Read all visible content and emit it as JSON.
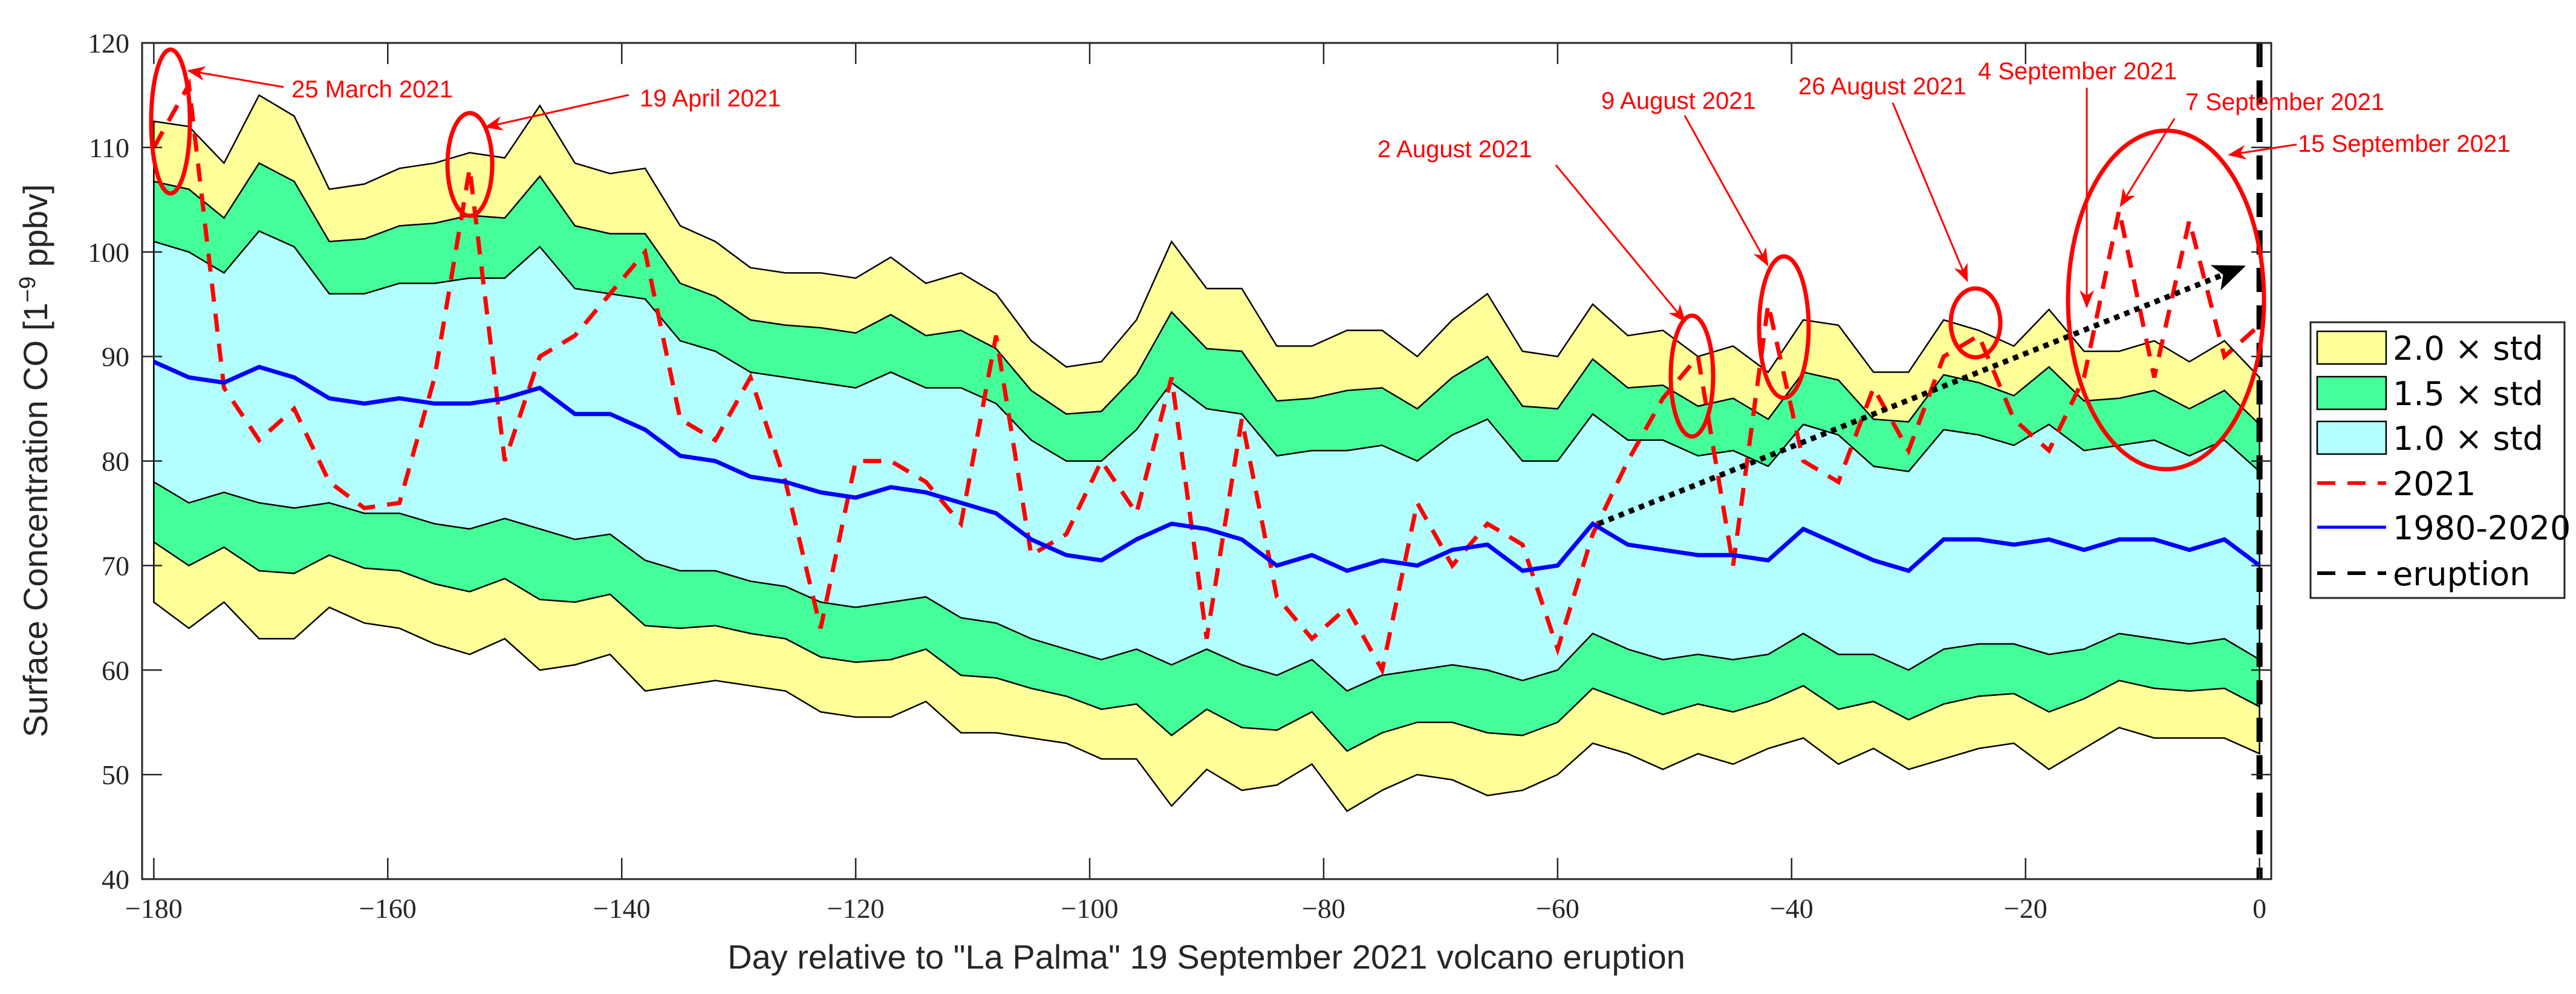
{
  "chart_data": {
    "type": "area",
    "title": "",
    "xlabel": "Day relative to \"La Palma\" 19 September 2021 volcano eruption",
    "ylabel": "Surface Concentration CO [1",
    "ylabel_sup": "−9",
    "ylabel_unit": " ppbv]",
    "xlim": [
      -181,
      1
    ],
    "ylim": [
      40,
      120
    ],
    "xticks": [
      -180,
      -160,
      -140,
      -120,
      -100,
      -80,
      -60,
      -40,
      -20,
      0
    ],
    "xtick_labels": [
      "−180",
      "−160",
      "−140",
      "−120",
      "−100",
      "−80",
      "−60",
      "−40",
      "−20",
      "0"
    ],
    "yticks": [
      40,
      50,
      60,
      70,
      80,
      90,
      100,
      110,
      120
    ],
    "ytick_labels": [
      "40",
      "50",
      "60",
      "70",
      "80",
      "90",
      "100",
      "110",
      "120"
    ],
    "grid": false,
    "legend_position": "right",
    "x": [
      -180,
      -177,
      -174,
      -171,
      -168,
      -165,
      -162,
      -159,
      -156,
      -153,
      -150,
      -147,
      -144,
      -141,
      -138,
      -135,
      -132,
      -129,
      -126,
      -123,
      -120,
      -117,
      -114,
      -111,
      -108,
      -105,
      -102,
      -99,
      -96,
      -93,
      -90,
      -87,
      -84,
      -81,
      -78,
      -75,
      -72,
      -69,
      -66,
      -63,
      -60,
      -57,
      -54,
      -51,
      -48,
      -45,
      -42,
      -39,
      -36,
      -33,
      -30,
      -27,
      -24,
      -21,
      -18,
      -15,
      -12,
      -9,
      -6,
      -3,
      0
    ],
    "series": [
      {
        "name": "1980-2020",
        "style": "solid",
        "color": "#0000ff",
        "values": [
          89.5,
          88,
          87.5,
          89,
          88,
          86,
          85.5,
          86,
          85.5,
          85.5,
          86,
          87,
          84.5,
          84.5,
          83,
          80.5,
          80,
          78.5,
          78,
          77,
          76.5,
          77.5,
          77,
          76,
          75,
          72.5,
          71,
          70.5,
          72.5,
          74,
          73.5,
          72.5,
          70,
          71,
          69.5,
          70.5,
          70,
          71.5,
          72,
          69.5,
          70,
          74,
          72,
          71.5,
          71,
          71,
          70.5,
          73.5,
          72,
          70.5,
          69.5,
          72.5,
          72.5,
          72,
          72.5,
          71.5,
          72.5,
          72.5,
          71.5,
          72.5,
          70
        ]
      },
      {
        "name": "std",
        "style": "band-width",
        "values": [
          11.5,
          12,
          10.5,
          13,
          12.5,
          10,
          10.5,
          11,
          11.5,
          12,
          11.5,
          13.5,
          12,
          11.5,
          12.5,
          11,
          10.5,
          10,
          10,
          10.5,
          10.5,
          11,
          10,
          11,
          10.5,
          9.5,
          9,
          9.5,
          10.5,
          13.5,
          11.5,
          12,
          10.5,
          10,
          11.5,
          11,
          10,
          11,
          12,
          10.5,
          10,
          10.5,
          10,
          10.5,
          9.5,
          10,
          9,
          10,
          10.5,
          9,
          9.5,
          10.5,
          10,
          9.5,
          11,
          9.5,
          9,
          9.5,
          9,
          9.5,
          9
        ]
      },
      {
        "name": "2021",
        "style": "dashed",
        "color": "#ff0000",
        "values": [
          110,
          116,
          87,
          82,
          85,
          78,
          75.5,
          76,
          88,
          108,
          80,
          90,
          92,
          96,
          100,
          84,
          82,
          88,
          78,
          64,
          80,
          80,
          78,
          74,
          92,
          71,
          73,
          80,
          75,
          88,
          63,
          84,
          67,
          63,
          66,
          60,
          76,
          70,
          74,
          72,
          62,
          73,
          80,
          86,
          90,
          70,
          95,
          80,
          78,
          87,
          81,
          90,
          92,
          84,
          81,
          88,
          104,
          88,
          103,
          90,
          93
        ]
      }
    ],
    "bands": [
      {
        "label": "2.0 × std",
        "k": 2.0,
        "color": "#ffff99"
      },
      {
        "label": "1.5 × std",
        "k": 1.5,
        "color": "#44ff99"
      },
      {
        "label": "1.0 × std",
        "k": 1.0,
        "color": "#b3ffff"
      }
    ],
    "legend": [
      {
        "label": "2.0 × std",
        "kind": "patch",
        "color": "#ffff99"
      },
      {
        "label": "1.5 × std",
        "kind": "patch",
        "color": "#44ff99"
      },
      {
        "label": "1.0 × std",
        "kind": "patch",
        "color": "#b3ffff"
      },
      {
        "label": "2021",
        "kind": "dashed",
        "color": "#ff0000"
      },
      {
        "label": "1980-2020",
        "kind": "solid",
        "color": "#0000ff"
      },
      {
        "label": "eruption",
        "kind": "dashed",
        "color": "#000000"
      }
    ],
    "eruption_day": 0,
    "trend_arrow": {
      "from": [
        -56.5,
        74
      ],
      "to": [
        -1.6,
        98.5
      ]
    },
    "annotations": [
      "25 March 2021",
      "19 April 2021",
      "2 August 2021",
      "9 August 2021",
      "26 August 2021",
      "4 September 2021",
      "7 September 2021",
      "15 September 2021"
    ]
  }
}
